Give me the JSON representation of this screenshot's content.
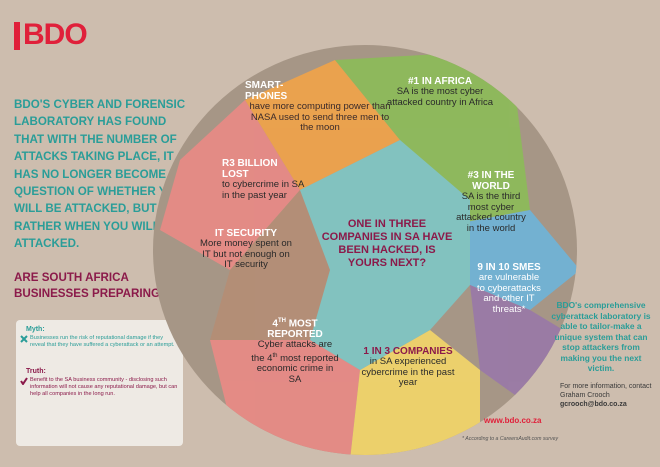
{
  "brand": {
    "logo": "BDO"
  },
  "intro": "BDO's cyber and forensic laboratory has found that with the number of attacks taking place, it has no longer become a question of whether you will be attacked, but rather when you will be attacked.",
  "question": "Are South Africa businesses preparing?",
  "myth": {
    "heading": "Myth:",
    "text": "Businesses run the risk of reputational damage if they reveal that they have suffered a cyberattack or an attempt."
  },
  "truth": {
    "heading": "Truth:",
    "text": "Benefit to the SA business community - disclosing such information will not cause any reputational damage, but can help all companies in the long run."
  },
  "segments": {
    "smartphones": {
      "heading": "Smart-phones",
      "body": "have more computing power than NASA used to send three men to the moon"
    },
    "africa": {
      "heading": "#1 in Africa",
      "body": "SA is the most cyber attacked country in Africa"
    },
    "billion": {
      "heading": "R3 billion lost",
      "body": "to cybercrime in SA in the past year"
    },
    "world": {
      "heading": "#3 in the world",
      "body": "SA is the third most cyber attacked country in the world"
    },
    "it_security": {
      "heading": "IT security",
      "body": "More money spent on IT but not enough on IT security"
    },
    "smes": {
      "heading": "9 in 10 SMEs",
      "body": "are vulnerable to cyberattacks and other IT threats*"
    },
    "reported": {
      "heading_main": "4",
      "heading_sup": "th",
      "heading_rest": "most reported",
      "body_a": "Cyber attacks are the 4",
      "body_sup": "th",
      "body_b": " most reported economic crime in SA"
    },
    "one_in_3": {
      "heading": "1 in 3 companies",
      "body": "in SA experienced cybercrime in the past year"
    }
  },
  "center": "One in three companies in SA have been hacked, is yours next?",
  "side": "BDO's comprehensive cyberattack laboratory is able to tailor-make a unique system that can stop attackers from making you the next victim.",
  "contact": {
    "line1": "For more information, contact",
    "name": "Graham Crooch",
    "email": "gcrooch@bdo.co.za"
  },
  "website": "www.bdo.co.za",
  "footnote": "* According to a CareersAudit.com survey",
  "colors": {
    "background": "#cdbdae",
    "teal": "#2a9d98",
    "maroon": "#8b1a4a",
    "red": "#e0203a",
    "orange": "#f0a34a",
    "green": "#8dbb5a",
    "blue": "#6fb4d8",
    "purple": "#9a79a8",
    "yellow": "#f2d56a",
    "pink": "#e98a86",
    "tan": "#b58e76"
  }
}
